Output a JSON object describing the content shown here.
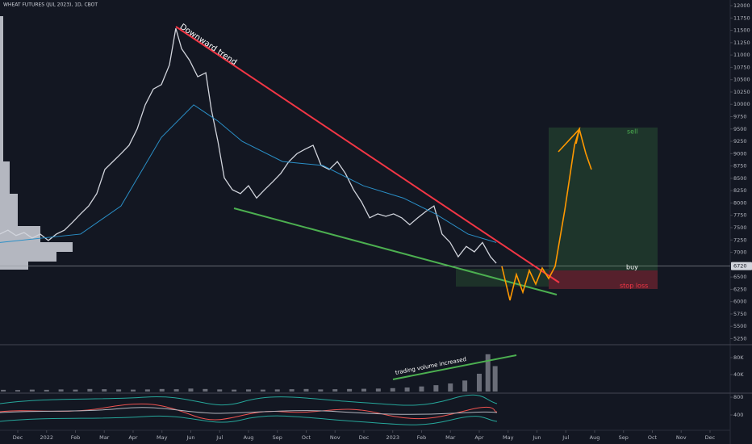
{
  "chart_data": [
    {
      "type": "line",
      "title": "WHEAT FUTURES (JUL 2023), 1D, CBOT",
      "annotations": [
        "Downward trend",
        "sell",
        "buy",
        "stop loss"
      ],
      "current_price": 6720,
      "xlim": [
        -0.615,
        24.7
      ],
      "xticks": [
        {
          "value": 0,
          "label": "Dec"
        },
        {
          "value": 1,
          "label": "2022"
        },
        {
          "value": 2,
          "label": "Feb"
        },
        {
          "value": 3,
          "label": "Mar"
        },
        {
          "value": 4,
          "label": "Apr"
        },
        {
          "value": 5,
          "label": "May"
        },
        {
          "value": 6,
          "label": "Jun"
        },
        {
          "value": 7,
          "label": "Jul"
        },
        {
          "value": 8,
          "label": "Aug"
        },
        {
          "value": 9,
          "label": "Sep"
        },
        {
          "value": 10,
          "label": "Oct"
        },
        {
          "value": 11,
          "label": "Nov"
        },
        {
          "value": 12,
          "label": "Dec"
        },
        {
          "value": 13,
          "label": "2023"
        },
        {
          "value": 14,
          "label": "Feb"
        },
        {
          "value": 15,
          "label": "Mar"
        },
        {
          "value": 16,
          "label": "Apr"
        },
        {
          "value": 17,
          "label": "May"
        },
        {
          "value": 18,
          "label": "Jun"
        },
        {
          "value": 19,
          "label": "Jul"
        },
        {
          "value": 20,
          "label": "Aug"
        },
        {
          "value": 21,
          "label": "Sep"
        },
        {
          "value": 22,
          "label": "Oct"
        },
        {
          "value": 23,
          "label": "Nov"
        },
        {
          "value": 24,
          "label": "Dec"
        }
      ],
      "ylim": [
        5160,
        12115
      ],
      "yticks": [
        12000,
        11750,
        11500,
        11250,
        11000,
        10750,
        10500,
        10250,
        10000,
        9750,
        9500,
        9250,
        9000,
        8750,
        8500,
        8250,
        8000,
        7750,
        7500,
        7250,
        7000,
        6500,
        6250,
        6000,
        5750,
        5500,
        5250
      ],
      "series": [
        {
          "color": "#d1d4dc",
          "x": [
            -0.62,
            -0.34,
            -0.06,
            0.22,
            0.5,
            0.78,
            1.06,
            1.34,
            1.62,
            1.9,
            2.18,
            2.46,
            2.74,
            3.02,
            3.3,
            3.58,
            3.86,
            4.14,
            4.42,
            4.7,
            4.98,
            5.26,
            5.48,
            5.68,
            5.96,
            6.24,
            6.52,
            6.71,
            6.94,
            7.16,
            7.44,
            7.72,
            8.0,
            8.28,
            8.56,
            8.84,
            9.12,
            9.4,
            9.68,
            9.96,
            10.24,
            10.52,
            10.8,
            11.08,
            11.36,
            11.64,
            11.92,
            12.2,
            12.48,
            12.76,
            13.03,
            13.31,
            13.59,
            13.87,
            14.15,
            14.43,
            14.71,
            14.99,
            15.27,
            15.55,
            15.83,
            16.11,
            16.39,
            16.59
          ],
          "values": [
            7370,
            7450,
            7340,
            7400,
            7290,
            7370,
            7240,
            7370,
            7450,
            7610,
            7780,
            7940,
            8190,
            8680,
            8840,
            9000,
            9170,
            9500,
            9990,
            10310,
            10400,
            10800,
            11540,
            11130,
            10890,
            10560,
            10640,
            9900,
            9250,
            8510,
            8270,
            8190,
            8350,
            8100,
            8270,
            8430,
            8600,
            8840,
            9000,
            9090,
            9170,
            8760,
            8680,
            8840,
            8600,
            8270,
            8020,
            7700,
            7780,
            7730,
            7780,
            7700,
            7560,
            7700,
            7830,
            7940,
            7370,
            7200,
            6910,
            7120,
            7010,
            7200,
            6910,
            6780
          ]
        },
        {
          "color": "#2a8fc7",
          "x": [
            -0.62,
            2.18,
            3.58,
            4.98,
            6.1,
            6.94,
            7.78,
            9.18,
            10.58,
            11.98,
            13.37,
            14.48,
            15.61,
            16.59
          ],
          "values": [
            7200,
            7370,
            7940,
            9330,
            9990,
            9660,
            9250,
            8840,
            8760,
            8350,
            8100,
            7780,
            7370,
            7200
          ]
        }
      ]
    },
    {
      "type": "bar",
      "annotations": [
        "trading volume increased"
      ],
      "xlim": [
        -0.615,
        24.7
      ],
      "ylim": [
        0,
        104800
      ],
      "yticks": [
        {
          "value": 40000,
          "label": "40K"
        },
        {
          "value": 80000,
          "label": "80K"
        }
      ],
      "color": "#6a6d78",
      "x": [
        -0.5,
        0,
        0.5,
        1,
        1.5,
        2,
        2.5,
        3,
        3.5,
        4,
        4.5,
        5,
        5.5,
        6,
        6.5,
        7,
        7.5,
        8,
        8.5,
        9,
        9.5,
        10,
        10.5,
        11,
        11.5,
        12,
        12.5,
        13,
        13.5,
        14,
        14.5,
        15,
        15.5,
        16,
        16.3,
        16.55
      ],
      "values": [
        4000,
        3500,
        4500,
        4000,
        5000,
        4500,
        6000,
        5500,
        5000,
        4500,
        5000,
        6000,
        5500,
        7000,
        6000,
        5000,
        4500,
        5000,
        4500,
        5000,
        5500,
        6000,
        5000,
        5500,
        6000,
        6500,
        7000,
        8000,
        9500,
        12000,
        15000,
        19000,
        26000,
        42000,
        88000,
        60000
      ]
    },
    {
      "type": "line",
      "ylim": [
        73,
        873
      ],
      "yticks": [
        800,
        400
      ]
    }
  ]
}
